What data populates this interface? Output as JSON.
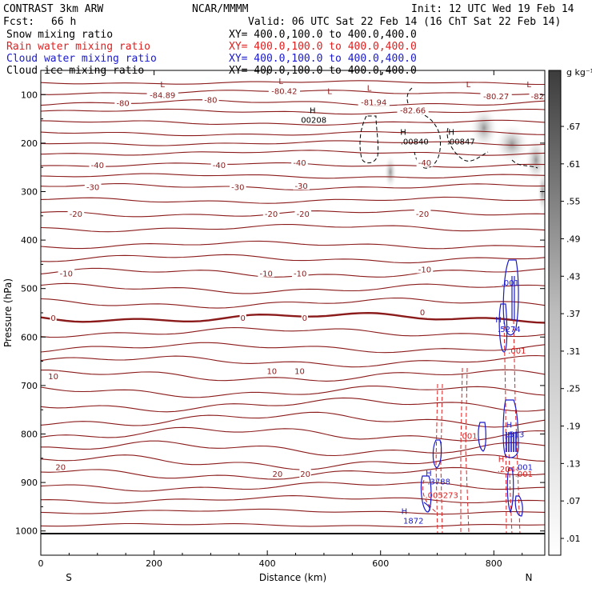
{
  "header": {
    "model": "CONTRAST  3km ARW",
    "org": "NCAR/MMMM",
    "init": "Init: 12 UTC Wed 19 Feb 14",
    "fcst_label": "Fcst:",
    "fcst_value": "66 h",
    "valid": "Valid: 06 UTC Sat 22 Feb 14 (16 ChT Sat 22 Feb 14)"
  },
  "fields": [
    {
      "name": "Snow mixing ratio",
      "xy": "XY= 400.0,100.0 to 400.0,400.0",
      "color": "#000000"
    },
    {
      "name": "Rain water mixing ratio",
      "xy": "XY= 400.0,100.0 to 400.0,400.0",
      "color": "#e02020"
    },
    {
      "name": "Cloud water mixing ratio",
      "xy": "XY= 400.0,100.0 to 400.0,400.0",
      "color": "#1a1acc"
    },
    {
      "name": "Cloud ice mixing ratio",
      "xy": "XY= 400.0,100.0 to 400.0,400.0",
      "color": "#000000"
    }
  ],
  "colors": {
    "temperature": "#8b1a1a",
    "rain": "#e02020",
    "cloud_water": "#1a1acc",
    "ice": "#000000"
  },
  "chart_data": {
    "type": "cross-section contour",
    "xlabel": "Distance (km)",
    "ylabel": "Pressure (hPa)",
    "xlim": [
      0,
      890
    ],
    "ylim": [
      1050,
      50
    ],
    "x_ticks": [
      0,
      200,
      400,
      600,
      800
    ],
    "x_tick_labels": [
      "0",
      "200",
      "400",
      "600",
      "800"
    ],
    "y_ticks": [
      100,
      200,
      300,
      400,
      500,
      600,
      700,
      800,
      900,
      1000
    ],
    "y_tick_labels": [
      "100",
      "200",
      "300",
      "400",
      "500",
      "600",
      "700",
      "800",
      "900",
      "1000"
    ],
    "end_labels": {
      "left": "S",
      "right": "N"
    },
    "colorbar": {
      "unit": "g kg⁻¹",
      "labels": [
        ".67",
        ".61",
        ".55",
        ".49",
        ".43",
        ".37",
        ".31",
        ".25",
        ".19",
        ".13",
        ".07",
        ".01"
      ]
    },
    "temperature_levels": [
      {
        "p": 75,
        "wave": 1.5
      },
      {
        "p": 95,
        "wave": 2
      },
      {
        "p": 117,
        "wave": 2.5
      },
      {
        "p": 135,
        "wave": 2
      },
      {
        "p": 158,
        "wave": 2
      },
      {
        "p": 180,
        "wave": 2
      },
      {
        "p": 200,
        "wave": 2
      },
      {
        "p": 220,
        "wave": 2
      },
      {
        "p": 245,
        "wave": 2
      },
      {
        "p": 268,
        "wave": 2
      },
      {
        "p": 290,
        "wave": 2.5
      },
      {
        "p": 318,
        "wave": 2.5
      },
      {
        "p": 345,
        "wave": 3
      },
      {
        "p": 375,
        "wave": 3
      },
      {
        "p": 410,
        "wave": 3
      },
      {
        "p": 438,
        "wave": 3.5
      },
      {
        "p": 468,
        "wave": 4
      },
      {
        "p": 500,
        "wave": 4
      },
      {
        "p": 530,
        "wave": 4
      },
      {
        "p": 560,
        "wave": 4,
        "bold": true
      },
      {
        "p": 590,
        "wave": 4
      },
      {
        "p": 622,
        "wave": 4
      },
      {
        "p": 650,
        "wave": 4.5
      },
      {
        "p": 680,
        "wave": 5
      },
      {
        "p": 712,
        "wave": 5
      },
      {
        "p": 740,
        "wave": 5.5
      },
      {
        "p": 770,
        "wave": 6
      },
      {
        "p": 800,
        "wave": 6
      },
      {
        "p": 830,
        "wave": 6
      },
      {
        "p": 858,
        "wave": 6
      },
      {
        "p": 882,
        "wave": 5
      },
      {
        "p": 908,
        "wave": 4
      },
      {
        "p": 935,
        "wave": 3
      },
      {
        "p": 960,
        "wave": 2
      },
      {
        "p": 988,
        "wave": 1.5
      }
    ],
    "temperature_labels": [
      {
        "text": "-80",
        "x": 145,
        "p": 117
      },
      {
        "text": "-80",
        "x": 300,
        "p": 110
      },
      {
        "text": "-80.42",
        "x": 430,
        "p": 92
      },
      {
        "text": "-84.89",
        "x": 215,
        "p": 100
      },
      {
        "text": "-81.94",
        "x": 588,
        "p": 115
      },
      {
        "text": "-82.66",
        "x": 657,
        "p": 132
      },
      {
        "text": "-80.27",
        "x": 804,
        "p": 103
      },
      {
        "text": "-82",
        "x": 877,
        "p": 103
      },
      {
        "text": "-40",
        "x": 100,
        "p": 245
      },
      {
        "text": "-40",
        "x": 315,
        "p": 245
      },
      {
        "text": "-40",
        "x": 457,
        "p": 240
      },
      {
        "text": "-40",
        "x": 678,
        "p": 240
      },
      {
        "text": "-30",
        "x": 92,
        "p": 290
      },
      {
        "text": "-30",
        "x": 348,
        "p": 290
      },
      {
        "text": "-30",
        "x": 460,
        "p": 288
      },
      {
        "text": "-20",
        "x": 62,
        "p": 345
      },
      {
        "text": "-20",
        "x": 407,
        "p": 345
      },
      {
        "text": "-20",
        "x": 463,
        "p": 345
      },
      {
        "text": "-20",
        "x": 674,
        "p": 345
      },
      {
        "text": "-10",
        "x": 45,
        "p": 468
      },
      {
        "text": "-10",
        "x": 398,
        "p": 468
      },
      {
        "text": "-10",
        "x": 458,
        "p": 468
      },
      {
        "text": "-10",
        "x": 678,
        "p": 460
      },
      {
        "text": "0",
        "x": 22,
        "p": 560
      },
      {
        "text": "0",
        "x": 357,
        "p": 560
      },
      {
        "text": "0",
        "x": 466,
        "p": 560
      },
      {
        "text": "0",
        "x": 674,
        "p": 548
      },
      {
        "text": "10",
        "x": 22,
        "p": 680
      },
      {
        "text": "10",
        "x": 408,
        "p": 670
      },
      {
        "text": "10",
        "x": 457,
        "p": 670
      },
      {
        "text": "20",
        "x": 35,
        "p": 868
      },
      {
        "text": "20",
        "x": 418,
        "p": 882
      },
      {
        "text": "20",
        "x": 467,
        "p": 882
      }
    ],
    "extrema_labels": [
      {
        "text": "L",
        "x": 215,
        "p": 85,
        "color": "temperature"
      },
      {
        "text": "L",
        "x": 424,
        "p": 78,
        "color": "temperature"
      },
      {
        "text": "L",
        "x": 510,
        "p": 99,
        "color": "temperature"
      },
      {
        "text": "L",
        "x": 580,
        "p": 92,
        "color": "temperature"
      },
      {
        "text": "L",
        "x": 755,
        "p": 85,
        "color": "temperature"
      },
      {
        "text": "L",
        "x": 862,
        "p": 85,
        "color": "temperature"
      },
      {
        "text": "H",
        "x": 480,
        "p": 138,
        "color": "ice"
      },
      {
        "text": "00208",
        "x": 482,
        "p": 158,
        "color": "ice"
      },
      {
        "text": "H",
        "x": 640,
        "p": 183,
        "color": "ice"
      },
      {
        "text": ".00840",
        "x": 660,
        "p": 203,
        "color": "ice"
      },
      {
        "text": "H",
        "x": 725,
        "p": 183,
        "color": "ice"
      },
      {
        "text": ".00847",
        "x": 742,
        "p": 203,
        "color": "ice"
      },
      {
        "text": ".001",
        "x": 829,
        "p": 494,
        "color": "cloud_water"
      },
      {
        "text": "H",
        "x": 808,
        "p": 570,
        "color": "cloud_water"
      },
      {
        "text": ".5274",
        "x": 827,
        "p": 590,
        "color": "cloud_water"
      },
      {
        "text": ".001",
        "x": 841,
        "p": 634,
        "color": "rain"
      },
      {
        "text": ".001",
        "x": 755,
        "p": 810,
        "color": "rain"
      },
      {
        "text": "H",
        "x": 827,
        "p": 787,
        "color": "cloud_water"
      },
      {
        "text": ".513",
        "x": 838,
        "p": 807,
        "color": "cloud_water"
      },
      {
        "text": "H",
        "x": 813,
        "p": 858,
        "color": "rain"
      },
      {
        "text": ".204",
        "x": 822,
        "p": 878,
        "color": "rain"
      },
      {
        "text": ".001",
        "x": 853,
        "p": 874,
        "color": "cloud_water"
      },
      {
        "text": ".001",
        "x": 853,
        "p": 888,
        "color": "rain"
      },
      {
        "text": "H",
        "x": 685,
        "p": 887,
        "color": "cloud_water"
      },
      {
        "text": ".3788",
        "x": 703,
        "p": 904,
        "color": "cloud_water"
      },
      {
        "text": ".005273",
        "x": 708,
        "p": 932,
        "color": "rain"
      },
      {
        "text": "H",
        "x": 642,
        "p": 965,
        "color": "cloud_water"
      },
      {
        "text": "1872",
        "x": 658,
        "p": 985,
        "color": "cloud_water"
      }
    ]
  }
}
